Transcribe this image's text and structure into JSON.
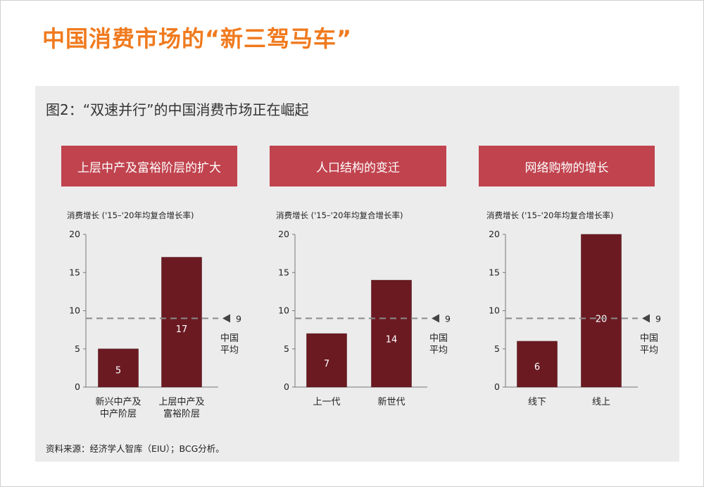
{
  "page_title": "中国消费市场的“新三驾马车”",
  "figure_title": "图2：“双速并行”的中国消费市场正在崛起",
  "source_note": "资料来源：经济学人智库（EIU）；BCG分析。",
  "colors": {
    "accent": "#f07a1e",
    "header": "#c0434e",
    "bar": "#6b1a22",
    "panel_bg": "#ececec"
  },
  "chart_data": [
    {
      "type": "bar",
      "title": "上层中产及富裕阶层的扩大",
      "ylabel": "消费增长 ('15–'20年均复合增长率)",
      "ylim": [
        0,
        20
      ],
      "yticks": [
        0,
        5,
        10,
        15,
        20
      ],
      "categories": [
        "新兴中产及\n中产阶层",
        "上层中产及\n富裕阶层"
      ],
      "values": [
        5,
        17
      ],
      "reference": {
        "value": 9,
        "label": "9",
        "note": "中国\n平均"
      }
    },
    {
      "type": "bar",
      "title": "人口结构的变迁",
      "ylabel": "消费增长 ('15–'20年均复合增长率)",
      "ylim": [
        0,
        20
      ],
      "yticks": [
        0,
        5,
        10,
        15,
        20
      ],
      "categories": [
        "上一代",
        "新世代"
      ],
      "values": [
        7,
        14
      ],
      "reference": {
        "value": 9,
        "label": "9",
        "note": "中国\n平均"
      }
    },
    {
      "type": "bar",
      "title": "网络购物的增长",
      "ylabel": "消费增长 ('15–'20年均复合增长率)",
      "ylim": [
        0,
        20
      ],
      "yticks": [
        0,
        5,
        10,
        15,
        20
      ],
      "categories": [
        "线下",
        "线上"
      ],
      "values": [
        6,
        20
      ],
      "reference": {
        "value": 9,
        "label": "9",
        "note": "中国\n平均"
      }
    }
  ]
}
